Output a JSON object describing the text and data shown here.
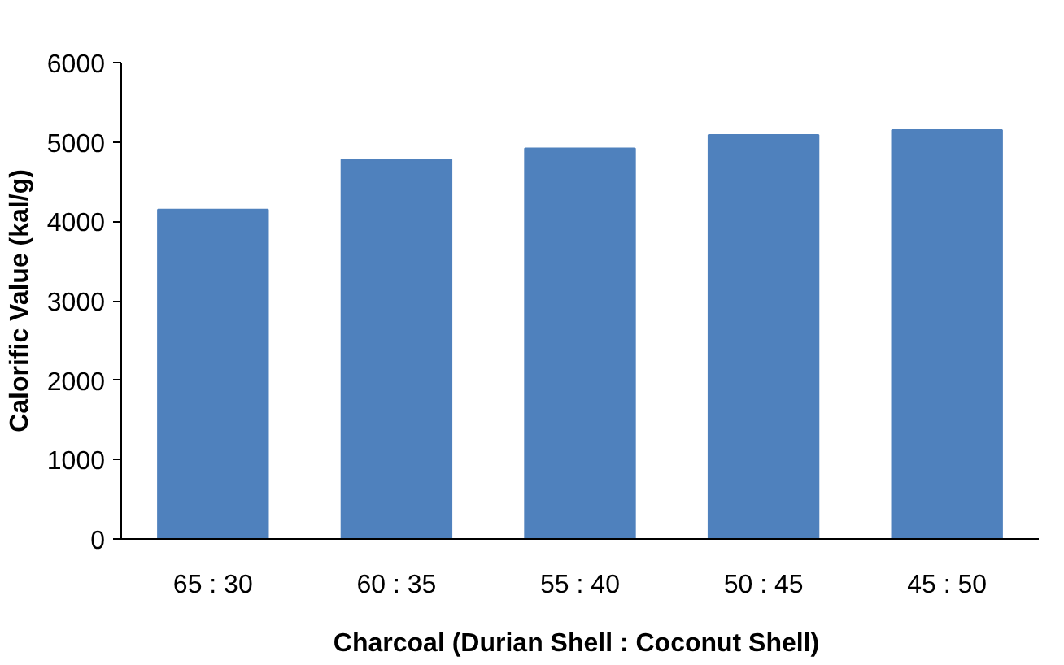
{
  "chart_data": {
    "type": "bar",
    "xlabel": "Charcoal  (Durian Shell : Coconut Shell)",
    "ylabel": "Calorific Value (kal/g)",
    "categories": [
      "65 : 30",
      "60 : 35",
      "55 : 40",
      "50 : 45",
      "45 : 50"
    ],
    "values": [
      4150,
      4780,
      4920,
      5090,
      5150
    ],
    "color": "#4f81bd",
    "ylim": [
      0,
      6000
    ],
    "yticks": [
      0,
      1000,
      2000,
      3000,
      4000,
      5000,
      6000
    ],
    "grid": false
  }
}
